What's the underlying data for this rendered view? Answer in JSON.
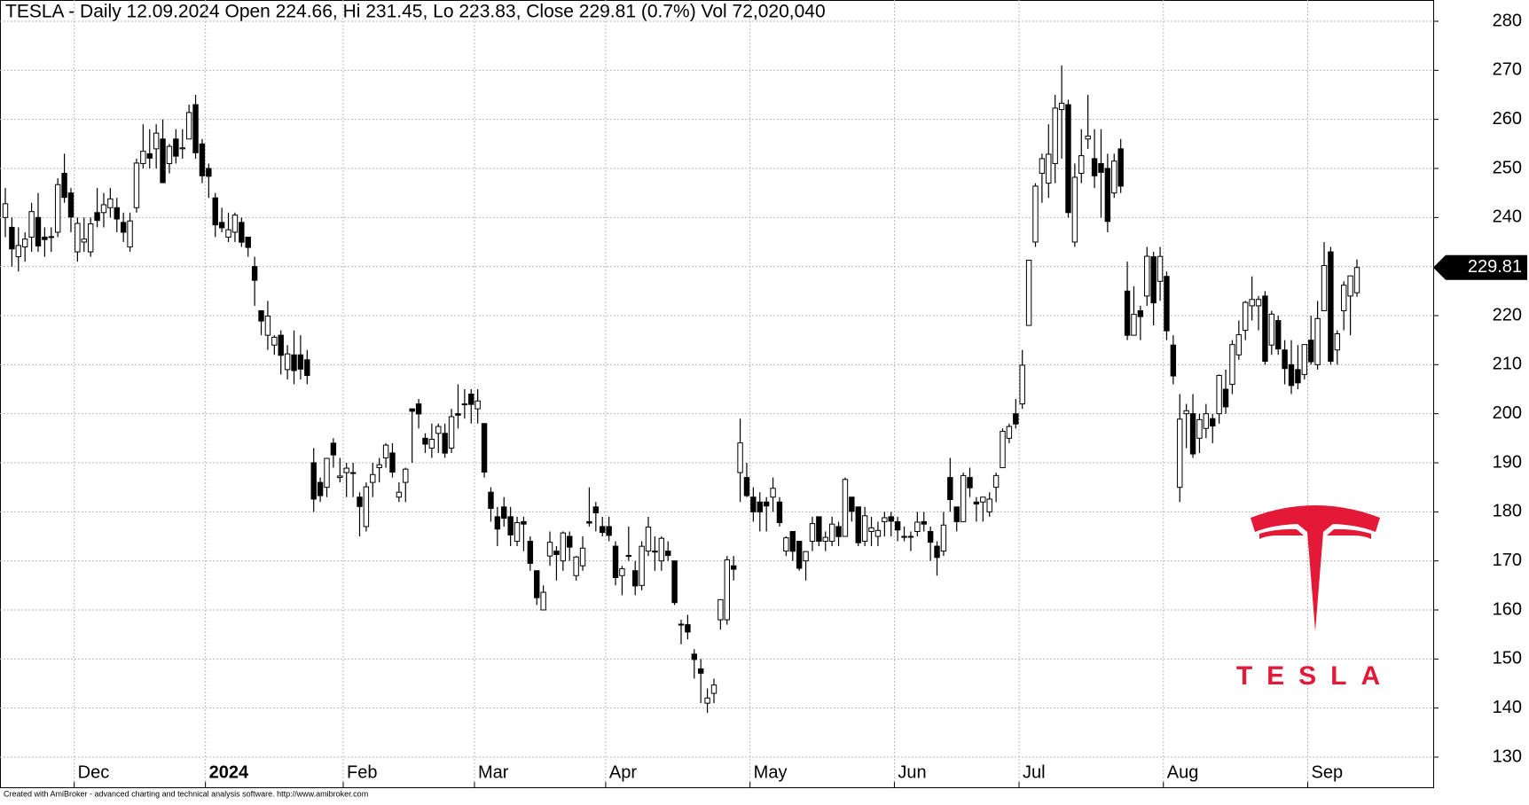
{
  "chart_data": {
    "type": "candlestick",
    "title": "TESLA - Daily 12.09.2024 Open 224.66, Hi 231.45, Lo 223.83, Close 229.81 (0.7%) Vol 72,020,040",
    "footer": "Created with AmiBroker - advanced charting and technical analysis software. http://www.amibroker.com",
    "logo_text": "TESLA",
    "up_color": "#ffffff",
    "down_color": "#000000",
    "grid": true,
    "ylim": [
      130,
      280
    ],
    "yticks": [
      130,
      140,
      150,
      160,
      170,
      180,
      190,
      200,
      210,
      220,
      230,
      240,
      250,
      260,
      270,
      280
    ],
    "xlim": [
      0,
      206
    ],
    "xticks": [
      {
        "value": 11,
        "label": "Dec"
      },
      {
        "value": 31,
        "label": "2024"
      },
      {
        "value": 52,
        "label": "Feb"
      },
      {
        "value": 72,
        "label": "Mar"
      },
      {
        "value": 92,
        "label": "Apr"
      },
      {
        "value": 114,
        "label": "May"
      },
      {
        "value": 136,
        "label": "Jun"
      },
      {
        "value": 155,
        "label": "Jul"
      },
      {
        "value": 177,
        "label": "Aug"
      },
      {
        "value": 199,
        "label": "Sep"
      }
    ],
    "open": [
      240,
      238,
      232,
      234,
      236,
      240,
      236,
      236,
      237,
      249,
      245,
      233,
      235,
      233,
      241,
      241,
      242,
      242,
      239,
      234,
      242,
      251,
      253,
      254,
      256,
      251,
      256,
      254,
      256,
      263,
      255,
      250,
      244,
      239,
      236,
      237,
      239,
      236,
      230,
      221,
      216,
      214,
      216,
      209,
      212,
      212,
      211,
      190,
      186,
      185,
      194,
      187,
      188,
      188,
      183,
      177,
      186,
      189,
      191,
      192,
      183,
      186,
      201,
      202,
      195,
      193,
      196,
      196,
      193,
      200,
      202,
      204,
      201,
      198,
      184,
      179,
      181,
      179,
      174,
      178,
      174,
      168,
      160,
      171,
      172,
      170,
      175,
      167,
      169,
      178,
      181,
      177,
      177,
      173,
      167,
      171,
      168,
      165,
      172,
      172,
      170,
      172,
      170,
      157,
      157,
      151,
      148,
      141,
      143,
      158,
      158,
      169,
      188,
      187,
      183,
      182,
      182,
      183,
      182,
      172,
      176,
      174,
      170,
      174,
      179,
      174,
      174,
      177,
      175,
      183,
      181,
      174,
      176,
      175,
      178,
      179,
      178,
      175,
      175,
      176,
      178,
      176,
      173,
      172,
      187,
      181,
      178,
      187,
      182,
      182,
      180,
      185,
      189,
      195,
      200,
      202,
      218,
      235,
      249,
      247,
      251,
      262,
      263,
      235,
      249,
      256,
      252,
      251,
      250,
      245,
      254,
      225,
      216,
      221,
      224,
      232,
      227,
      228,
      214,
      185,
      200,
      200,
      195,
      197,
      199,
      200,
      205,
      206,
      212,
      217,
      222,
      222,
      224,
      214,
      219,
      213,
      210,
      209,
      208,
      215,
      210,
      221,
      233,
      213,
      221,
      224,
      224.66
    ],
    "high": [
      246,
      240,
      238,
      237,
      243,
      245,
      238,
      238,
      248,
      253,
      246,
      240,
      240,
      240,
      246,
      245,
      246,
      244,
      241,
      241,
      252,
      259,
      258,
      259,
      260,
      255,
      258,
      258,
      263,
      265,
      256,
      251,
      245,
      242,
      241,
      241,
      240,
      236,
      232,
      221,
      223,
      216,
      217,
      214,
      217,
      216,
      213,
      193,
      187,
      191,
      195,
      191,
      190,
      190,
      184,
      186,
      190,
      191,
      194,
      194,
      186,
      189,
      201,
      203,
      196,
      198,
      198,
      198,
      201,
      206,
      205,
      205,
      205,
      198,
      185,
      181,
      183,
      181,
      179,
      179,
      175,
      168,
      165,
      176,
      173,
      176,
      176,
      171,
      175,
      185,
      182,
      179,
      179,
      174,
      169,
      177,
      170,
      174,
      179,
      175,
      175,
      174,
      170,
      158,
      159,
      152,
      150,
      144,
      146,
      162,
      171,
      171,
      199,
      190,
      185,
      184,
      183,
      187,
      183,
      175,
      176,
      174,
      172,
      179,
      179,
      176,
      179,
      178,
      187,
      183,
      181,
      181,
      179,
      178,
      180,
      180,
      179,
      177,
      176,
      180,
      180,
      177,
      174,
      180,
      191,
      181,
      188,
      189,
      183,
      183,
      184,
      188,
      197,
      198,
      203,
      213,
      231,
      247,
      253,
      259,
      265,
      271,
      264,
      251,
      258,
      265,
      258,
      258,
      253,
      253,
      256,
      231,
      226,
      222,
      234,
      233,
      234,
      229,
      216,
      204,
      202,
      204,
      200,
      202,
      200,
      208,
      209,
      215,
      219,
      223,
      228,
      224,
      225,
      221,
      220,
      215,
      215,
      214,
      214,
      220,
      223,
      235,
      234,
      217,
      227,
      228,
      231.45
    ],
    "low": [
      236,
      230,
      229,
      231,
      233,
      233,
      232,
      233,
      236,
      243,
      237,
      231,
      233,
      232,
      238,
      238,
      240,
      237,
      235,
      233,
      241,
      250,
      250,
      250,
      247,
      249,
      251,
      252,
      256,
      252,
      247,
      244,
      236,
      237,
      235,
      235,
      234,
      232,
      222,
      216,
      213,
      212,
      208,
      207,
      206,
      207,
      206,
      180,
      182,
      183,
      189,
      186,
      183,
      183,
      175,
      176,
      183,
      186,
      189,
      187,
      182,
      182,
      190,
      197,
      192,
      191,
      192,
      191,
      192,
      197,
      199,
      198,
      198,
      187,
      178,
      173,
      177,
      173,
      173,
      172,
      168,
      161,
      160,
      169,
      166,
      168,
      170,
      166,
      168,
      177,
      176,
      175,
      174,
      165,
      163,
      170,
      163,
      164,
      171,
      168,
      168,
      170,
      161,
      153,
      154,
      146,
      141,
      139,
      141,
      156,
      157,
      166,
      182,
      183,
      178,
      176,
      176,
      180,
      177,
      171,
      170,
      168,
      166,
      172,
      173,
      172,
      173,
      173,
      175,
      178,
      173,
      173,
      173,
      173,
      175,
      175,
      174,
      174,
      172,
      175,
      176,
      170,
      167,
      171,
      180,
      176,
      178,
      183,
      178,
      178,
      179,
      182,
      189,
      194,
      197,
      201,
      218,
      234,
      243,
      244,
      247,
      252,
      240,
      234,
      247,
      254,
      246,
      240,
      237,
      244,
      245,
      215,
      216,
      215,
      222,
      218,
      223,
      215,
      206,
      182,
      193,
      191,
      192,
      195,
      194,
      198,
      200,
      204,
      211,
      215,
      219,
      217,
      210,
      212,
      212,
      206,
      204,
      205,
      207,
      210,
      209,
      221,
      210,
      210,
      217,
      216,
      223.83
    ],
    "close": [
      242.8,
      233.6,
      234.3,
      235.6,
      241.2,
      234.2,
      235.5,
      236.1,
      246.7,
      244.1,
      240.1,
      238.8,
      235.6,
      238.7,
      239.4,
      242.6,
      243.8,
      239.7,
      237.0,
      239.3,
      251.1,
      253.5,
      252.1,
      257.2,
      247.1,
      254.5,
      252.5,
      254.2,
      261.4,
      253.2,
      248.5,
      248.4,
      238.5,
      237.9,
      237.5,
      240.5,
      234.96,
      233.9,
      227.2,
      218.9,
      219.9,
      215.6,
      211.9,
      212.2,
      208.8,
      209.1,
      207.8,
      182.6,
      183.3,
      190.9,
      191.6,
      187.3,
      188.9,
      187.9,
      181.1,
      185.1,
      187.6,
      189.6,
      193.6,
      188.1,
      184.0,
      188.7,
      200.5,
      199.95,
      193.8,
      194.8,
      197.4,
      191.97,
      199.4,
      199.7,
      202.0,
      201.9,
      202.6,
      188.1,
      180.7,
      176.5,
      178.7,
      175.3,
      177.8,
      177.5,
      169.5,
      162.5,
      163.6,
      173.8,
      171.3,
      175.7,
      172.8,
      170.8,
      172.6,
      177.7,
      179.8,
      175.8,
      175.2,
      166.6,
      168.4,
      171.1,
      164.9,
      172.98,
      176.9,
      171.8,
      174.6,
      171.1,
      161.5,
      157.1,
      155.5,
      149.9,
      147.1,
      142.05,
      144.7,
      162.1,
      170.2,
      168.3,
      194.05,
      183.3,
      179.99,
      180.0,
      181.2,
      184.8,
      177.8,
      174.7,
      171.97,
      168.5,
      171.9,
      177.6,
      173.99,
      174.8,
      177.5,
      174.95,
      186.6,
      180.1,
      173.7,
      179.2,
      176.75,
      176.2,
      178.8,
      178.1,
      176.3,
      174.8,
      175.0,
      177.9,
      177.5,
      173.8,
      170.7,
      177.3,
      182.5,
      178.0,
      187.4,
      184.9,
      181.6,
      183.0,
      182.6,
      187.4,
      196.4,
      197.4,
      197.9,
      209.9,
      231.3,
      246.4,
      252.0,
      252.9,
      262.3,
      263.3,
      241.0,
      248.2,
      252.6,
      256.6,
      248.5,
      249.2,
      239.2,
      251.5,
      246.4,
      215.99,
      220.25,
      219.8,
      232.1,
      222.6,
      232.07,
      216.9,
      207.7,
      198.9,
      200.6,
      191.8,
      198.8,
      200.0,
      197.5,
      207.8,
      201.4,
      214.1,
      216.1,
      222.7,
      223.3,
      223.3,
      210.7,
      220.3,
      213.2,
      209.2,
      205.75,
      206.3,
      214.1,
      210.6,
      219.4,
      230.2,
      210.7,
      216.3,
      226.2,
      228.1,
      229.81
    ]
  }
}
